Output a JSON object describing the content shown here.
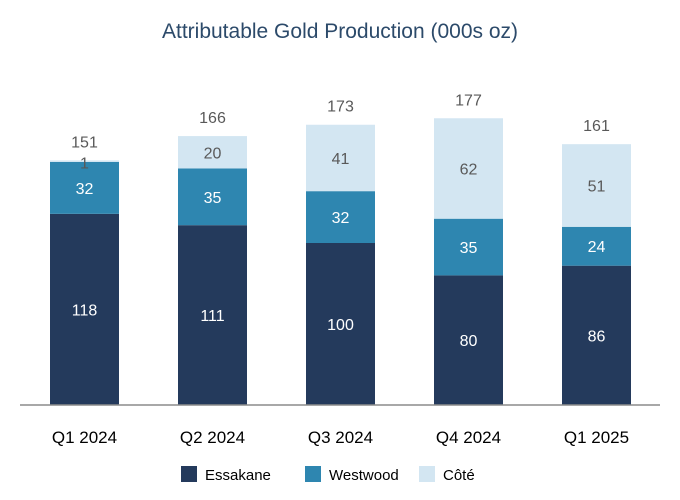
{
  "chart_data": {
    "type": "bar",
    "stacked": true,
    "title": "Attributable Gold Production (000s oz)",
    "categories": [
      "Q1 2024",
      "Q2 2024",
      "Q3 2024",
      "Q4 2024",
      "Q1 2025"
    ],
    "series": [
      {
        "name": "Essakane",
        "values": [
          118,
          111,
          100,
          80,
          86
        ],
        "color": "#243a5c",
        "label_color": "#ffffff"
      },
      {
        "name": "Westwood",
        "values": [
          32,
          35,
          32,
          35,
          24
        ],
        "color": "#2e86b0",
        "label_color": "#ffffff"
      },
      {
        "name": "Côté",
        "values": [
          1,
          20,
          41,
          62,
          51
        ],
        "color": "#d3e6f2",
        "label_color": "#595959"
      }
    ],
    "totals": [
      151,
      166,
      173,
      177,
      161
    ],
    "xlabel": "",
    "ylabel": "",
    "grid": false,
    "legend": "bottom"
  }
}
